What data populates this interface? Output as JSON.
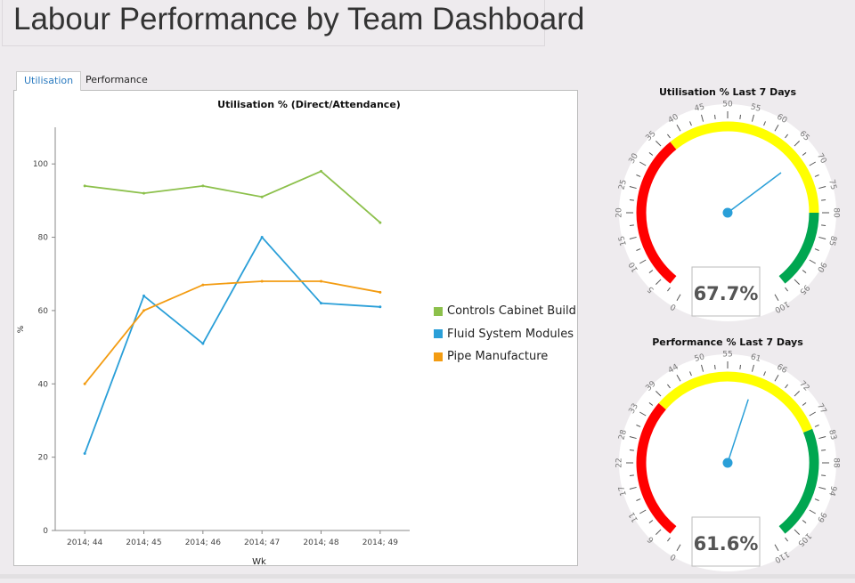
{
  "header": {
    "title": "Labour Performance by Team Dashboard"
  },
  "tabs": [
    {
      "label": "Utilisation",
      "active": true
    },
    {
      "label": "Performance",
      "active": false
    }
  ],
  "chart_data": {
    "type": "line",
    "title": "Utilisation % (Direct/Attendance)",
    "xlabel": "Wk",
    "ylabel": "%",
    "categories": [
      "2014; 44",
      "2014; 45",
      "2014; 46",
      "2014; 47",
      "2014; 48",
      "2014; 49"
    ],
    "ylim": [
      0,
      110
    ],
    "yticks": [
      0,
      20,
      40,
      60,
      80,
      100
    ],
    "grid": false,
    "legend_position": "right",
    "series": [
      {
        "name": "Controls Cabinet Build",
        "color": "#8cc04b",
        "values": [
          94,
          92,
          94,
          91,
          98,
          84
        ]
      },
      {
        "name": "Fluid System Modules",
        "color": "#2a9fd8",
        "values": [
          21,
          64,
          51,
          80,
          62,
          61
        ]
      },
      {
        "name": "Pipe Manufacture",
        "color": "#f39c12",
        "values": [
          40,
          60,
          67,
          68,
          68,
          65
        ]
      }
    ]
  },
  "gauges": [
    {
      "title": "Utilisation % Last 7 Days",
      "value": 67.7,
      "display": "67.7%",
      "min": 0,
      "max": 100,
      "labels": [
        "0",
        "5",
        "10",
        "15",
        "20",
        "25",
        "30",
        "35",
        "40",
        "45",
        "50",
        "55",
        "60",
        "65",
        "70",
        "75",
        "80",
        "85",
        "90",
        "95",
        "100"
      ],
      "bands": [
        {
          "from": 3,
          "to": 37,
          "color": "#ff0000"
        },
        {
          "from": 37,
          "to": 80,
          "color": "#ffff00"
        },
        {
          "from": 80,
          "to": 97,
          "color": "#00a650"
        }
      ]
    },
    {
      "title": "Performance % Last 7 Days",
      "value": 61.6,
      "display": "61.6%",
      "min": 0,
      "max": 110,
      "labels": [
        "0",
        "6",
        "11",
        "17",
        "22",
        "28",
        "33",
        "39",
        "44",
        "50",
        "55",
        "61",
        "66",
        "72",
        "77",
        "83",
        "88",
        "94",
        "99",
        "105",
        "110"
      ],
      "bands": [
        {
          "from": 3.3,
          "to": 37,
          "color": "#ff0000"
        },
        {
          "from": 37,
          "to": 80,
          "color": "#ffff00"
        },
        {
          "from": 80,
          "to": 106.7,
          "color": "#00a650"
        }
      ]
    }
  ],
  "colors": {
    "needle": "#2a9fd8",
    "background": "#eeebee"
  }
}
